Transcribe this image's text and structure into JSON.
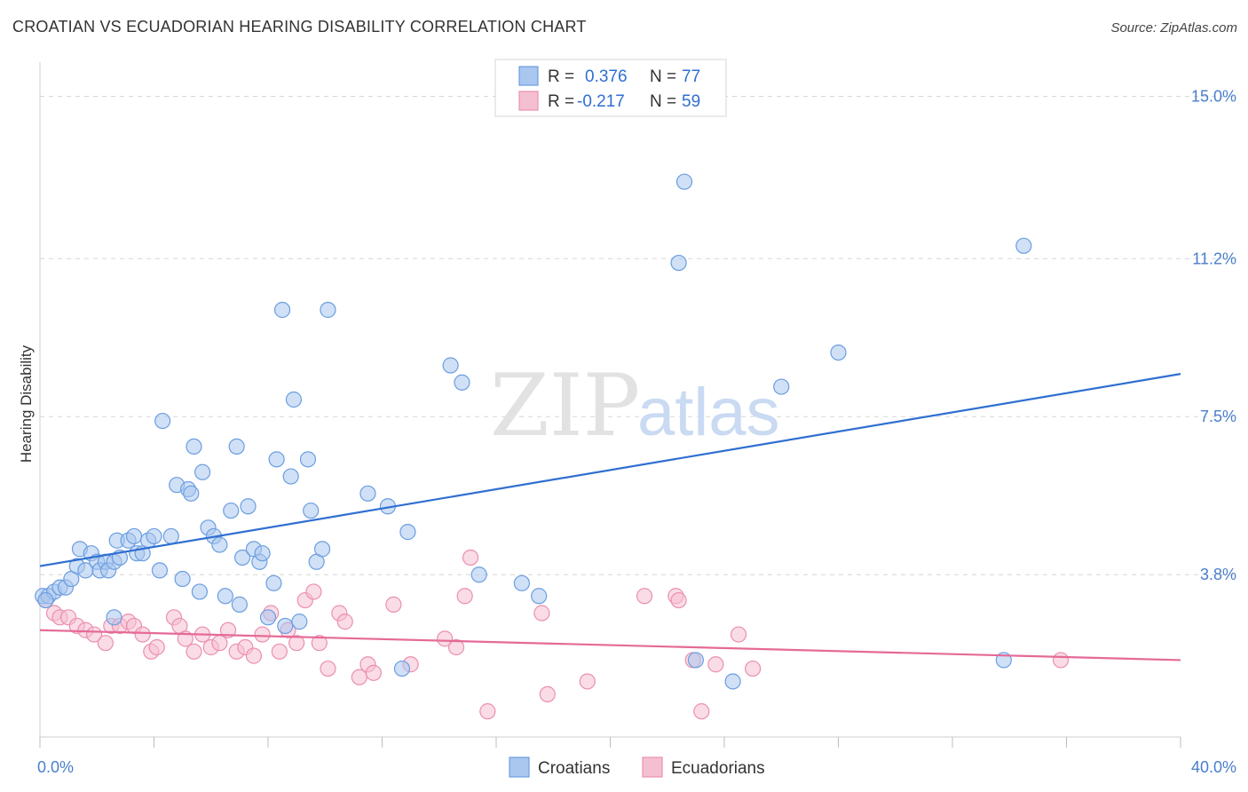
{
  "title": "CROATIAN VS ECUADORIAN HEARING DISABILITY CORRELATION CHART",
  "source": "Source: ZipAtlas.com",
  "watermark": {
    "zip": "ZIP",
    "atlas": "atlas"
  },
  "colors": {
    "croatians_fill": "#a9c7ef",
    "croatians_stroke": "#6b9ee0",
    "croatians_line": "#2f6fd1",
    "ecuadorians_fill": "#f5bfd2",
    "ecuadorians_stroke": "#eb8fb0",
    "ecuadorians_line": "#e56a97",
    "tick_label": "#4a7ecb",
    "grid": "#d6d6d6"
  },
  "legend": {
    "rows": [
      {
        "r_label": "R =",
        "r_value": "0.376",
        "n_label": "N =",
        "n_value": "77"
      },
      {
        "r_label": "R =",
        "r_value": "-0.217",
        "n_label": "N =",
        "n_value": "59"
      }
    ]
  },
  "bottom_legend": [
    "Croatians",
    "Ecuadorians"
  ],
  "chart_data": {
    "type": "scatter",
    "xlabel": "",
    "ylabel": "Hearing Disability",
    "xlim": [
      0,
      40
    ],
    "ylim": [
      0,
      15.8
    ],
    "x_tick_labels": [
      {
        "value": 0,
        "label": "0.0%"
      },
      {
        "value": 40,
        "label": "40.0%"
      }
    ],
    "y_tick_labels": [
      {
        "value": 3.8,
        "label": "3.8%"
      },
      {
        "value": 7.5,
        "label": "7.5%"
      },
      {
        "value": 11.2,
        "label": "11.2%"
      },
      {
        "value": 15.0,
        "label": "15.0%"
      }
    ],
    "x_minor_ticks": [
      0,
      4,
      8,
      12,
      16,
      20,
      24,
      28,
      32,
      36,
      40
    ],
    "grid": "horizontal dashed",
    "legend_placement": "top-center",
    "series": [
      {
        "name": "Croatians",
        "r": 0.376,
        "n": 77,
        "trend": {
          "x": [
            0,
            40
          ],
          "y": [
            4.0,
            8.5
          ]
        },
        "points": [
          [
            0.1,
            3.3
          ],
          [
            0.3,
            3.3
          ],
          [
            0.5,
            3.4
          ],
          [
            0.7,
            3.5
          ],
          [
            0.9,
            3.5
          ],
          [
            1.1,
            3.7
          ],
          [
            1.3,
            4.0
          ],
          [
            1.4,
            4.4
          ],
          [
            1.6,
            3.9
          ],
          [
            1.8,
            4.3
          ],
          [
            2.0,
            4.1
          ],
          [
            2.1,
            3.9
          ],
          [
            2.3,
            4.1
          ],
          [
            2.4,
            3.9
          ],
          [
            2.6,
            4.1
          ],
          [
            2.7,
            4.6
          ],
          [
            2.8,
            4.2
          ],
          [
            3.1,
            4.6
          ],
          [
            3.3,
            4.7
          ],
          [
            3.4,
            4.3
          ],
          [
            3.6,
            4.3
          ],
          [
            3.8,
            4.6
          ],
          [
            4.0,
            4.7
          ],
          [
            4.2,
            3.9
          ],
          [
            4.3,
            7.4
          ],
          [
            4.6,
            4.7
          ],
          [
            4.8,
            5.9
          ],
          [
            5.0,
            3.7
          ],
          [
            5.2,
            5.8
          ],
          [
            5.3,
            5.7
          ],
          [
            5.4,
            6.8
          ],
          [
            5.6,
            3.4
          ],
          [
            5.7,
            6.2
          ],
          [
            5.9,
            4.9
          ],
          [
            6.1,
            4.7
          ],
          [
            6.3,
            4.5
          ],
          [
            6.5,
            3.3
          ],
          [
            6.7,
            5.3
          ],
          [
            6.9,
            6.8
          ],
          [
            7.0,
            3.1
          ],
          [
            7.1,
            4.2
          ],
          [
            7.3,
            5.4
          ],
          [
            7.5,
            4.4
          ],
          [
            7.7,
            4.1
          ],
          [
            7.8,
            4.3
          ],
          [
            8.0,
            2.8
          ],
          [
            8.2,
            3.6
          ],
          [
            8.3,
            6.5
          ],
          [
            8.5,
            10.0
          ],
          [
            8.6,
            2.6
          ],
          [
            8.8,
            6.1
          ],
          [
            8.9,
            7.9
          ],
          [
            9.1,
            2.7
          ],
          [
            9.4,
            6.5
          ],
          [
            9.5,
            5.3
          ],
          [
            9.7,
            4.1
          ],
          [
            9.9,
            4.4
          ],
          [
            10.1,
            10.0
          ],
          [
            2.6,
            2.8
          ],
          [
            11.5,
            5.7
          ],
          [
            12.2,
            5.4
          ],
          [
            12.7,
            1.6
          ],
          [
            12.9,
            4.8
          ],
          [
            14.4,
            8.7
          ],
          [
            14.8,
            8.3
          ],
          [
            15.4,
            3.8
          ],
          [
            16.9,
            3.6
          ],
          [
            17.5,
            3.3
          ],
          [
            22.4,
            11.1
          ],
          [
            22.6,
            13.0
          ],
          [
            23.0,
            1.8
          ],
          [
            24.3,
            1.3
          ],
          [
            26.0,
            8.2
          ],
          [
            28.0,
            9.0
          ],
          [
            33.8,
            1.8
          ],
          [
            34.5,
            11.5
          ],
          [
            0.2,
            3.2
          ]
        ]
      },
      {
        "name": "Ecuadorians",
        "r": -0.217,
        "n": 59,
        "trend": {
          "x": [
            0,
            40
          ],
          "y": [
            2.5,
            1.8
          ]
        },
        "points": [
          [
            0.2,
            3.2
          ],
          [
            0.5,
            2.9
          ],
          [
            0.7,
            2.8
          ],
          [
            1.0,
            2.8
          ],
          [
            1.3,
            2.6
          ],
          [
            1.6,
            2.5
          ],
          [
            1.9,
            2.4
          ],
          [
            2.3,
            2.2
          ],
          [
            2.5,
            2.6
          ],
          [
            2.8,
            2.6
          ],
          [
            3.1,
            2.7
          ],
          [
            3.3,
            2.6
          ],
          [
            3.6,
            2.4
          ],
          [
            3.9,
            2.0
          ],
          [
            4.1,
            2.1
          ],
          [
            4.7,
            2.8
          ],
          [
            4.9,
            2.6
          ],
          [
            5.1,
            2.3
          ],
          [
            5.4,
            2.0
          ],
          [
            5.7,
            2.4
          ],
          [
            6.0,
            2.1
          ],
          [
            6.3,
            2.2
          ],
          [
            6.6,
            2.5
          ],
          [
            6.9,
            2.0
          ],
          [
            7.2,
            2.1
          ],
          [
            7.5,
            1.9
          ],
          [
            7.8,
            2.4
          ],
          [
            8.1,
            2.9
          ],
          [
            8.4,
            2.0
          ],
          [
            8.7,
            2.5
          ],
          [
            9.0,
            2.2
          ],
          [
            9.3,
            3.2
          ],
          [
            9.6,
            3.4
          ],
          [
            9.8,
            2.2
          ],
          [
            10.1,
            1.6
          ],
          [
            10.5,
            2.9
          ],
          [
            10.7,
            2.7
          ],
          [
            11.2,
            1.4
          ],
          [
            11.5,
            1.7
          ],
          [
            11.7,
            1.5
          ],
          [
            12.4,
            3.1
          ],
          [
            13.0,
            1.7
          ],
          [
            14.2,
            2.3
          ],
          [
            14.6,
            2.1
          ],
          [
            14.9,
            3.3
          ],
          [
            15.1,
            4.2
          ],
          [
            15.7,
            0.6
          ],
          [
            17.6,
            2.9
          ],
          [
            17.8,
            1.0
          ],
          [
            19.2,
            1.3
          ],
          [
            21.2,
            3.3
          ],
          [
            22.3,
            3.3
          ],
          [
            22.9,
            1.8
          ],
          [
            23.2,
            0.6
          ],
          [
            23.7,
            1.7
          ],
          [
            24.5,
            2.4
          ],
          [
            25.0,
            1.6
          ],
          [
            35.8,
            1.8
          ],
          [
            22.4,
            3.2
          ]
        ]
      }
    ]
  }
}
